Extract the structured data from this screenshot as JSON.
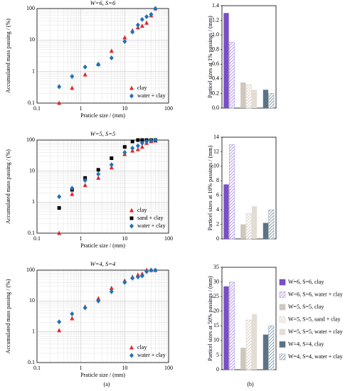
{
  "panel_labels": [
    "(a)",
    "(b)"
  ],
  "chart_data": [
    {
      "type": "scatter",
      "title": "W=6, S=6",
      "x_label": "Praticle size / (mm)",
      "y_label": "Accumulated mass passing / (%)",
      "xscale": "log",
      "yscale": "log",
      "xlim": [
        0.1,
        100
      ],
      "ylim": [
        0.1,
        100
      ],
      "xticks": [
        0.1,
        1,
        10,
        100
      ],
      "yticks": [
        0.1,
        1,
        10,
        100
      ],
      "grid": true,
      "legend": "lower right",
      "series": [
        {
          "name": "clay",
          "color": "#e3262b",
          "marker": "triangle",
          "x": [
            0.32,
            0.63,
            1.25,
            2.5,
            5,
            10,
            15,
            20,
            25,
            31.5,
            40,
            50
          ],
          "values": [
            0.1,
            0.3,
            0.8,
            1.7,
            4.5,
            12,
            20,
            25,
            28,
            35,
            60,
            100
          ]
        },
        {
          "name": "water + clay",
          "color": "#1f72b8",
          "marker": "diamond",
          "x": [
            0.32,
            0.63,
            1.25,
            2.5,
            5,
            10,
            15,
            20,
            25,
            31.5,
            40,
            50
          ],
          "values": [
            0.33,
            0.7,
            1.4,
            1.7,
            2.7,
            9,
            18,
            30,
            45,
            55,
            65,
            100
          ]
        }
      ]
    },
    {
      "type": "scatter",
      "title": "W=5, S=5",
      "x_label": "Praticle size / (mm)",
      "y_label": "Accumulated mass passing / (%)",
      "xscale": "log",
      "yscale": "log",
      "xlim": [
        0.1,
        100
      ],
      "ylim": [
        0.1,
        100
      ],
      "xticks": [
        0.1,
        1,
        10,
        100
      ],
      "yticks": [
        0.1,
        1,
        10,
        100
      ],
      "grid": true,
      "legend": "lower right",
      "series": [
        {
          "name": "clay",
          "color": "#e3262b",
          "marker": "triangle",
          "x": [
            0.32,
            0.63,
            1.25,
            2.5,
            5,
            10,
            15,
            20,
            25,
            31.5,
            40,
            50
          ],
          "values": [
            0.1,
            1.8,
            3.5,
            6,
            13,
            35,
            45,
            50,
            60,
            80,
            90,
            95
          ]
        },
        {
          "name": "sand + clay",
          "color": "#000000",
          "marker": "square",
          "x": [
            0.32,
            0.63,
            1.25,
            2.5,
            5,
            10,
            15,
            20,
            25,
            31.5,
            40,
            50
          ],
          "values": [
            0.65,
            2.5,
            6,
            11,
            26,
            60,
            90,
            100,
            100,
            100,
            100,
            100
          ]
        },
        {
          "name": "water + clay",
          "color": "#1f72b8",
          "marker": "diamond",
          "x": [
            0.32,
            0.63,
            1.25,
            2.5,
            5,
            10,
            15,
            20,
            25,
            31.5,
            40,
            50
          ],
          "values": [
            1.5,
            2.8,
            5,
            8,
            16,
            40,
            55,
            65,
            80,
            90,
            95,
            100
          ]
        }
      ]
    },
    {
      "type": "scatter",
      "title": "W=4, S=4",
      "x_label": "Praticle size / (mm)",
      "y_label": "Accumulated mass passing / (%)",
      "xscale": "log",
      "yscale": "log",
      "xlim": [
        0.1,
        100
      ],
      "ylim": [
        0.1,
        100
      ],
      "xticks": [
        0.1,
        1,
        10,
        100
      ],
      "yticks": [
        0.1,
        1,
        10,
        100
      ],
      "grid": true,
      "legend": "lower right",
      "series": [
        {
          "name": "clay",
          "color": "#e3262b",
          "marker": "triangle",
          "x": [
            0.32,
            0.63,
            1.25,
            2.5,
            5,
            10,
            15,
            20,
            25,
            31.5,
            40,
            50
          ],
          "values": [
            1.1,
            2.7,
            6.5,
            12,
            26,
            45,
            60,
            70,
            75,
            100,
            100,
            100
          ]
        },
        {
          "name": "water + clay",
          "color": "#1f72b8",
          "marker": "diamond",
          "x": [
            0.32,
            0.63,
            1.25,
            2.5,
            5,
            10,
            15,
            20,
            25,
            31.5,
            40,
            50
          ],
          "values": [
            2.1,
            3.8,
            6,
            10,
            20,
            40,
            55,
            60,
            65,
            90,
            100,
            100
          ]
        }
      ]
    },
    {
      "type": "bar",
      "y_label": "Particel sizes at 1% passings / (mm)",
      "categories": [
        "W=6, S=6, clay",
        "W=6, S=6, water + clay",
        "W=5, S=5, clay",
        "W=5, S=5, sand + clay",
        "W=5, S=5, water + clay",
        "W=4, S=4, clay",
        "W=4, S=4, water + clay"
      ],
      "colors": [
        "#7a4fc4",
        "#b49be6",
        "#cfc6bd",
        "#d8d0c6",
        "#e4ddd5",
        "#5c7384",
        "#8ea2b0"
      ],
      "fills": [
        "solid",
        "hatch",
        "solid",
        "hatch",
        "solid",
        "solid",
        "hatch"
      ],
      "values": [
        1.3,
        0.9,
        0.35,
        0.32,
        0.25,
        0.25,
        0.2
      ],
      "ylim": [
        0,
        1.4
      ],
      "yticks": [
        {
          "value": 0,
          "label": "0.0"
        },
        0.2,
        0.4,
        0.6,
        0.8,
        {
          "value": 1,
          "label": "1.0"
        },
        1.2,
        1.4
      ]
    },
    {
      "type": "bar",
      "y_label": "Particel sizes at 10% passings / (mm)",
      "categories": [
        "W=6, S=6, clay",
        "W=6, S=6, water + clay",
        "W=5, S=5, clay",
        "W=5, S=5, sand + clay",
        "W=5, S=5, water + clay",
        "W=4, S=4, clay",
        "W=4, S=4, water + clay"
      ],
      "colors": [
        "#7a4fc4",
        "#b49be6",
        "#cfc6bd",
        "#d8d0c6",
        "#e4ddd5",
        "#5c7384",
        "#8ea2b0"
      ],
      "fills": [
        "solid",
        "hatch",
        "solid",
        "hatch",
        "solid",
        "solid",
        "hatch"
      ],
      "values": [
        7.5,
        13,
        2,
        3.5,
        4.5,
        2.2,
        4
      ],
      "ylim": [
        0,
        14
      ],
      "yticks": [
        0,
        2,
        4,
        6,
        8,
        10,
        12,
        14
      ]
    },
    {
      "type": "bar",
      "y_label": "Particel sizes at 50% passings / (mm)",
      "categories": [
        "W=6, S=6, clay",
        "W=6, S=6, water + clay",
        "W=5, S=5, clay",
        "W=5, S=5, sand + clay",
        "W=5, S=5, water + clay",
        "W=4, S=4, clay",
        "W=4, S=4, water + clay"
      ],
      "colors": [
        "#7a4fc4",
        "#b49be6",
        "#cfc6bd",
        "#d8d0c6",
        "#e4ddd5",
        "#5c7384",
        "#8ea2b0"
      ],
      "fills": [
        "solid",
        "hatch",
        "solid",
        "hatch",
        "solid",
        "solid",
        "hatch"
      ],
      "values": [
        28.5,
        30,
        7.5,
        17,
        19,
        12,
        15
      ],
      "ylim": [
        0,
        35
      ],
      "yticks": [
        0,
        5,
        10,
        15,
        20,
        25,
        30,
        35
      ],
      "legend": "right"
    }
  ]
}
